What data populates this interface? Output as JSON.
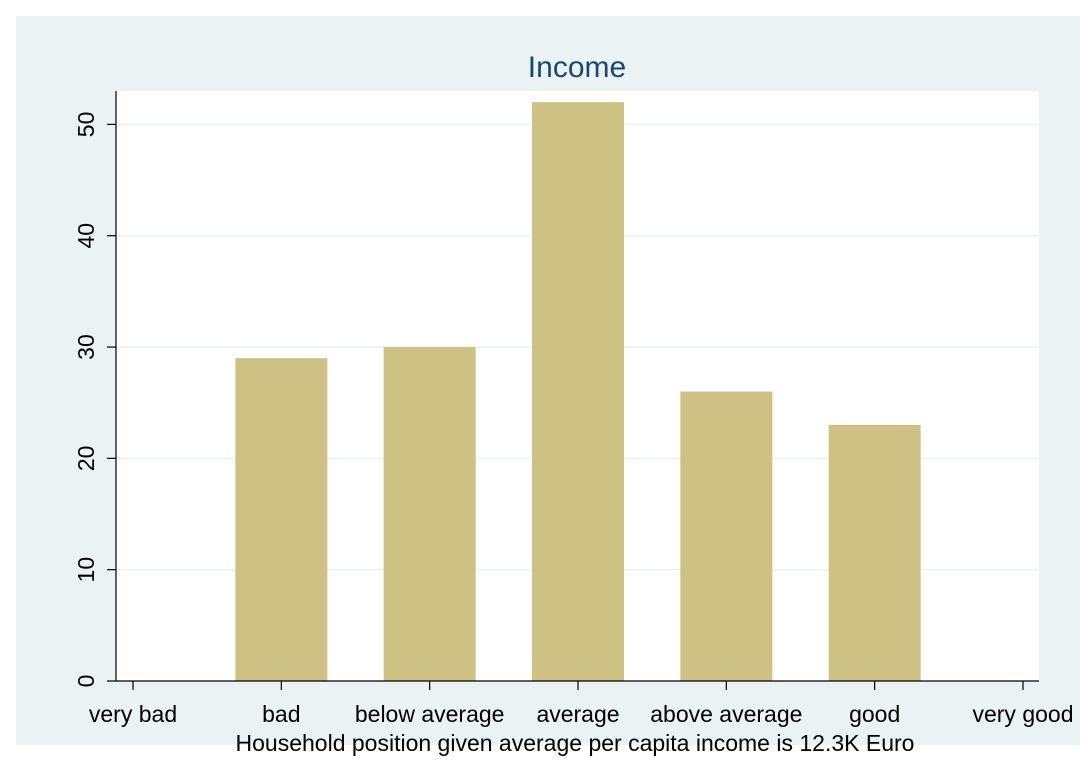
{
  "chart_data": {
    "type": "bar",
    "title": "Income",
    "xlabel": "Household position given average per capita income is 12.3K Euro",
    "ylabel": "",
    "categories": [
      "very bad",
      "bad",
      "below average",
      "average",
      "above average",
      "good",
      "very good"
    ],
    "values": [
      0,
      29,
      30,
      52,
      26,
      23,
      0
    ],
    "ylim": [
      0,
      53
    ],
    "yticks": [
      0,
      10,
      20,
      30,
      40,
      50
    ],
    "grid": true,
    "legend": "none",
    "colors": {
      "bar": "#cdc283",
      "plot_background": "#ffffff",
      "outer_background": "#eaf2f3",
      "gridline": "#eaf2f3",
      "title": "#1a476f"
    }
  }
}
